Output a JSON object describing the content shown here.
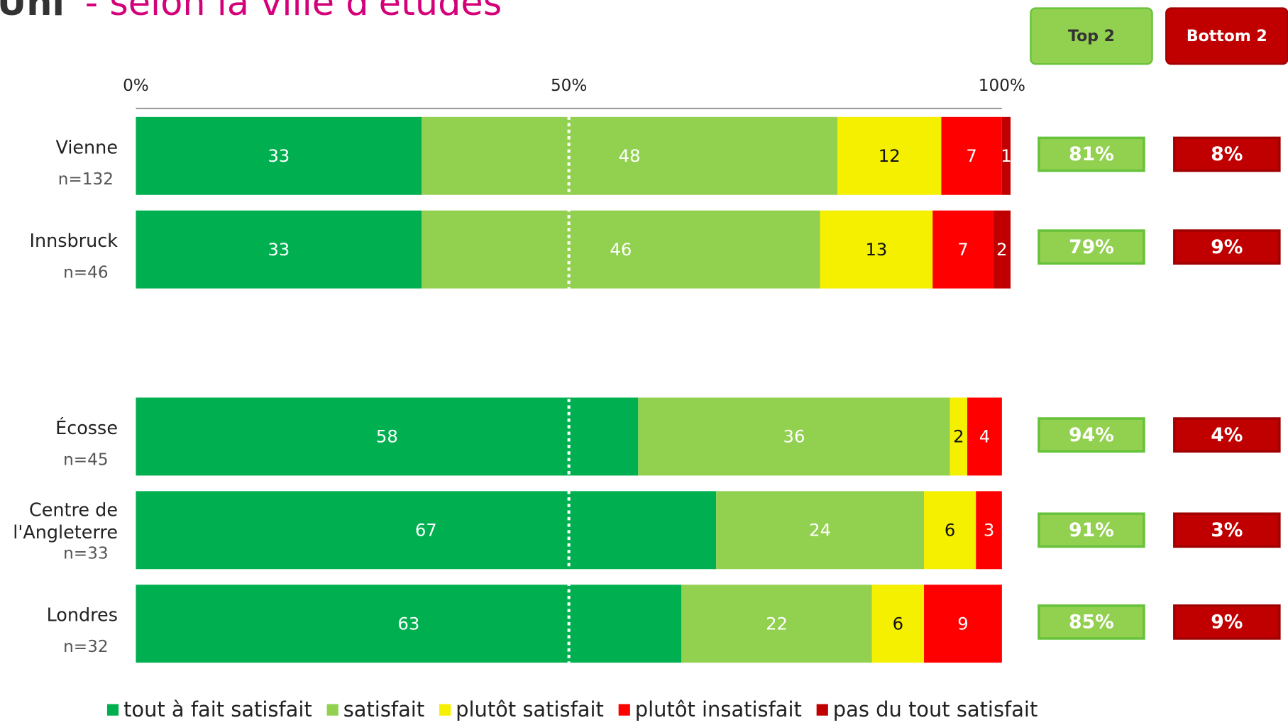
{
  "chart_data": {
    "type": "stacked-bar-horizontal",
    "title_bold": "Uni",
    "title": "- selon la ville d'études",
    "categories": [
      "Vienne",
      "Innsbruck",
      "Écosse",
      "Centre de l'Angleterre",
      "Londres"
    ],
    "sample_sizes": [
      "n=132",
      "n=46",
      "n=45",
      "n=33",
      "n=32"
    ],
    "xlim": [
      0,
      100
    ],
    "xticks": [
      {
        "value": 0,
        "label": "0%"
      },
      {
        "value": 50,
        "label": "50%"
      },
      {
        "value": 100,
        "label": "100%"
      }
    ],
    "series": [
      {
        "name": "tout à fait satisfait",
        "color": "#00b050",
        "values": [
          33,
          33,
          58,
          67,
          63
        ]
      },
      {
        "name": "satisfait",
        "color": "#92d050",
        "values": [
          48,
          46,
          36,
          24,
          22
        ]
      },
      {
        "name": "plutôt satisfait",
        "color": "#f5ef00",
        "values": [
          12,
          13,
          2,
          6,
          6
        ]
      },
      {
        "name": "plutôt insatisfait",
        "color": "#ff0000",
        "values": [
          7,
          7,
          4,
          3,
          9
        ]
      },
      {
        "name": "pas du tout satisfait",
        "color": "#c00000",
        "values": [
          1,
          2,
          null,
          null,
          null
        ]
      }
    ],
    "top2": {
      "label": "Top 2",
      "color": "#92d050",
      "values": [
        81,
        79,
        94,
        91,
        85
      ],
      "value_labels": [
        "81%",
        "79%",
        "94%",
        "91%",
        "85%"
      ]
    },
    "bottom2": {
      "label": "Bottom 2",
      "color": "#c00000",
      "values": [
        8,
        9,
        4,
        3,
        9
      ],
      "value_labels": [
        "8%",
        "9%",
        "4%",
        "3%",
        "9%"
      ]
    }
  }
}
